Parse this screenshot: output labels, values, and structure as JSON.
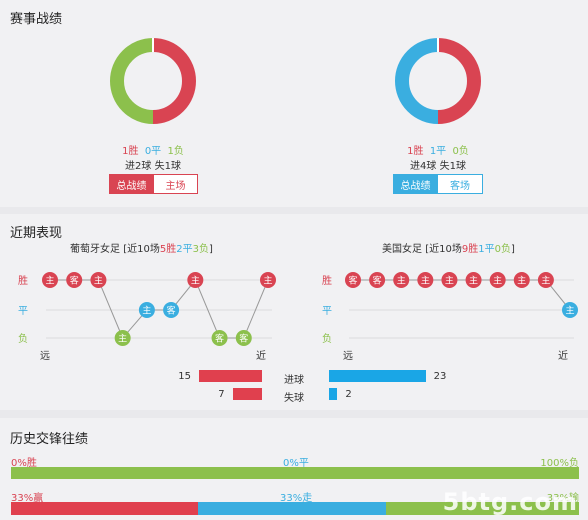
{
  "record": {
    "title": "赛事战绩",
    "left": {
      "w": "1胜",
      "d": "0平",
      "l": "1负",
      "goals": "进2球 失1球",
      "tab_active": "总战绩",
      "tab_other": "主场",
      "segments": [
        1,
        0,
        1
      ]
    },
    "right": {
      "w": "1胜",
      "d": "1平",
      "l": "0负",
      "goals": "进4球 失1球",
      "tab_active": "总战绩",
      "tab_other": "客场",
      "segments": [
        1,
        1,
        0
      ]
    },
    "colors": {
      "win": "#d94452",
      "draw": "#3aaee0",
      "loss": "#8cc04c"
    }
  },
  "recent": {
    "title": "近期表现",
    "left_team": {
      "name": "葡萄牙女足",
      "prefix": "[近10场",
      "w": "5胜",
      "d": "2平",
      "l": "3负",
      "suffix": "]"
    },
    "right_team": {
      "name": "美国女足",
      "prefix": "[近10场",
      "w": "9胜",
      "d": "1平",
      "l": "0负",
      "suffix": "]"
    },
    "row_labels": [
      "胜",
      "平",
      "负"
    ],
    "far": "远",
    "near": "近",
    "left_results": [
      {
        "r": "W",
        "t": "主"
      },
      {
        "r": "W",
        "t": "客"
      },
      {
        "r": "W",
        "t": "主"
      },
      {
        "r": "L",
        "t": "主"
      },
      {
        "r": "D",
        "t": "主"
      },
      {
        "r": "D",
        "t": "客"
      },
      {
        "r": "W",
        "t": "主"
      },
      {
        "r": "L",
        "t": "客"
      },
      {
        "r": "L",
        "t": "客"
      },
      {
        "r": "W",
        "t": "主"
      }
    ],
    "right_results": [
      {
        "r": "W",
        "t": "客"
      },
      {
        "r": "W",
        "t": "客"
      },
      {
        "r": "W",
        "t": "主"
      },
      {
        "r": "W",
        "t": "主"
      },
      {
        "r": "W",
        "t": "主"
      },
      {
        "r": "W",
        "t": "主"
      },
      {
        "r": "W",
        "t": "主"
      },
      {
        "r": "W",
        "t": "主"
      },
      {
        "r": "W",
        "t": "主"
      },
      {
        "r": "D",
        "t": "主"
      }
    ],
    "goals_for_label": "进球",
    "goals_against_label": "失球",
    "left_for": 15,
    "left_against": 7,
    "right_for": 23,
    "right_against": 2
  },
  "history": {
    "title": "历史交锋往绩",
    "row1": {
      "left": "0%胜",
      "mid": "0%平",
      "right": "100%负",
      "fractions": [
        0,
        0,
        1
      ]
    },
    "row2": {
      "left": "33%赢",
      "mid": "33%走",
      "right": "33%输",
      "fractions": [
        0.33,
        0.33,
        0.34
      ]
    },
    "watermark": "5btg.com"
  }
}
